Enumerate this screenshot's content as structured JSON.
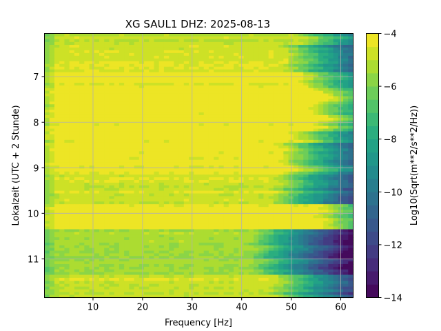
{
  "chart_data": {
    "type": "heatmap",
    "title": "XG SAUL1  DHZ: 2025-08-13",
    "xlabel": "Frequency [Hz]",
    "ylabel": "Lokalzeit (UTC + 2 Stunde)",
    "xlim": [
      0.2,
      62.5
    ],
    "ylim": [
      11.85,
      6.05
    ],
    "y_inverted": true,
    "x_ticks": [
      10,
      20,
      30,
      40,
      50,
      60
    ],
    "x_tick_labels": [
      "10",
      "20",
      "30",
      "40",
      "50",
      "60"
    ],
    "y_ticks": [
      7,
      8,
      9,
      10,
      11
    ],
    "y_tick_labels": [
      "7",
      "8",
      "9",
      "10",
      "11"
    ],
    "grid": true,
    "colormap": "viridis",
    "colorbar": {
      "label": "Log10(Sqrt(m**2/s**2/Hz))",
      "range": [
        -14,
        -4
      ],
      "ticks": [
        -14,
        -12,
        -10,
        -8,
        -6,
        -4
      ],
      "tick_labels": [
        "−14",
        "−12",
        "−10",
        "−8",
        "−6",
        "−4"
      ],
      "levels": 20
    },
    "rows": [
      {
        "y_start": 6.05,
        "y_end": 6.3,
        "falloff_hz": 52,
        "mid_level": -4.9
      },
      {
        "y_start": 6.3,
        "y_end": 6.9,
        "falloff_hz": 48,
        "mid_level": -4.6
      },
      {
        "y_start": 6.9,
        "y_end": 7.25,
        "falloff_hz": 52,
        "mid_level": -4.3
      },
      {
        "y_start": 7.25,
        "y_end": 8.2,
        "falloff_hz": 55,
        "mid_level": -4.1
      },
      {
        "y_start": 8.2,
        "y_end": 8.45,
        "falloff_hz": 50,
        "mid_level": -4.1
      },
      {
        "y_start": 8.45,
        "y_end": 8.95,
        "falloff_hz": 47,
        "mid_level": -4.1
      },
      {
        "y_start": 8.95,
        "y_end": 9.15,
        "falloff_hz": 50,
        "mid_level": -4.4
      },
      {
        "y_start": 9.15,
        "y_end": 9.8,
        "falloff_hz": 46,
        "mid_level": -4.7
      },
      {
        "y_start": 9.8,
        "y_end": 10.35,
        "falloff_hz": 55,
        "mid_level": -4.2
      },
      {
        "y_start": 10.35,
        "y_end": 11.35,
        "falloff_hz": 42,
        "mid_level": -5.4
      },
      {
        "y_start": 11.35,
        "y_end": 11.55,
        "falloff_hz": 46,
        "mid_level": -4.6
      },
      {
        "y_start": 11.55,
        "y_end": 11.85,
        "falloff_hz": 45,
        "mid_level": -5.0
      }
    ]
  }
}
